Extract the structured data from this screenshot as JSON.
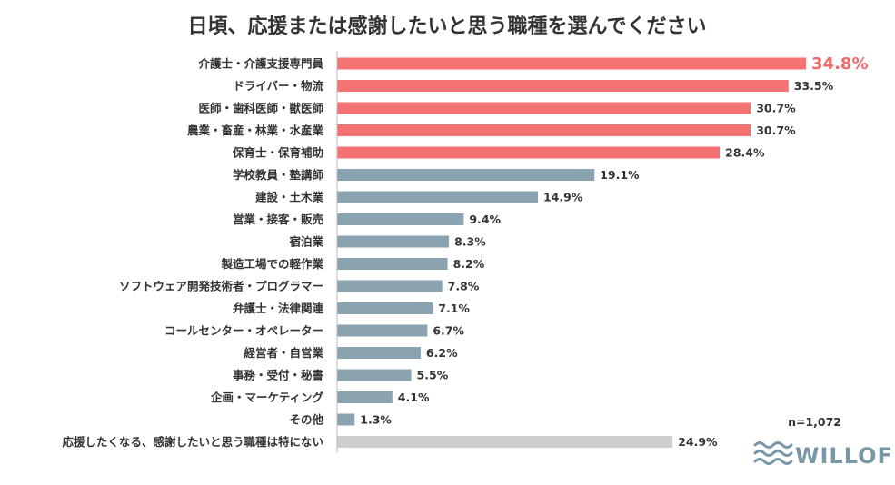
{
  "chart_data": {
    "type": "bar",
    "orientation": "horizontal",
    "title": "日頃、応援または感謝したいと思う職種を選んでください",
    "categories": [
      "介護士・介護支援専門員",
      "ドライバー・物流",
      "医師・歯科医師・獣医師",
      "農業・畜産・林業・水産業",
      "保育士・保育補助",
      "学校教員・塾講師",
      "建設・土木業",
      "営業・接客・販売",
      "宿泊業",
      "製造工場での軽作業",
      "ソフトウェア開発技術者・プログラマー",
      "弁護士・法律関連",
      "コールセンター・オペレーター",
      "経営者・自営業",
      "事務・受付・秘書",
      "企画・マーケティング",
      "その他",
      "応援したくなる、感謝したいと思う職種は特にない"
    ],
    "values": [
      34.8,
      33.5,
      30.7,
      30.7,
      28.4,
      19.1,
      14.9,
      9.4,
      8.3,
      8.2,
      7.8,
      7.1,
      6.7,
      6.2,
      5.5,
      4.1,
      1.3,
      24.9
    ],
    "value_labels": [
      "34.8%",
      "33.5%",
      "30.7%",
      "30.7%",
      "28.4%",
      "19.1%",
      "14.9%",
      "9.4%",
      "8.3%",
      "8.2%",
      "7.8%",
      "7.1%",
      "6.7%",
      "6.2%",
      "5.5%",
      "4.1%",
      "1.3%",
      "24.9%"
    ],
    "highlight_count": 5,
    "xlim": [
      0,
      35
    ],
    "sample_size": "n=1,072",
    "colors": {
      "highlight": "#f47272",
      "normal": "#8aa3b1",
      "none": "#cfcdcd",
      "top_label": "#f06a6a",
      "axis": "#bbbbbb"
    }
  },
  "brand": {
    "name": "WILLOF",
    "color": "#7a97a8"
  }
}
